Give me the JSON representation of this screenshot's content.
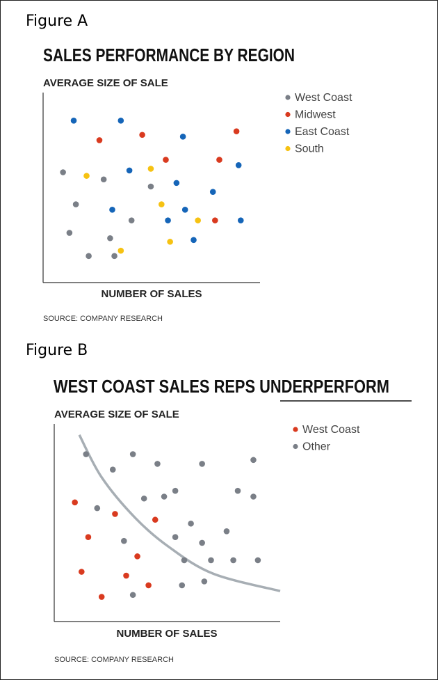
{
  "colors": {
    "West Coast": "#7a7f87",
    "Midwest": "#d93a1f",
    "East Coast": "#1565b8",
    "South": "#f6c212",
    "Other": "#7a7f87",
    "B West Coast": "#d93a1f",
    "curve": "#a7aeb4"
  },
  "chart_data": [
    {
      "figure_label": "Figure A",
      "type": "scatter",
      "title": "SALES PERFORMANCE BY REGION",
      "ylabel": "AVERAGE SIZE OF SALE",
      "xlabel": "NUMBER OF SALES",
      "source": "SOURCE: COMPANY RESEARCH",
      "legend_position": "top-right",
      "grid": false,
      "xlim": [
        0,
        100
      ],
      "ylim": [
        0,
        100
      ],
      "series": [
        {
          "name": "West Coast",
          "color": "#7a7f87",
          "points": [
            [
              8,
              58
            ],
            [
              14,
              40
            ],
            [
              11,
              24
            ],
            [
              27,
              54
            ],
            [
              30,
              21
            ],
            [
              40,
              31
            ],
            [
              32,
              11
            ],
            [
              20,
              11
            ],
            [
              49,
              50
            ]
          ]
        },
        {
          "name": "Midwest",
          "color": "#d93a1f",
          "points": [
            [
              25,
              76
            ],
            [
              45,
              79
            ],
            [
              56,
              65
            ],
            [
              89,
              81
            ],
            [
              81,
              65
            ],
            [
              79,
              31
            ]
          ]
        },
        {
          "name": "East Coast",
          "color": "#1565b8",
          "points": [
            [
              13,
              87
            ],
            [
              35,
              87
            ],
            [
              64,
              78
            ],
            [
              39,
              59
            ],
            [
              61,
              52
            ],
            [
              31,
              37
            ],
            [
              65,
              37
            ],
            [
              57,
              31
            ],
            [
              69,
              20
            ],
            [
              78,
              47
            ],
            [
              90,
              62
            ],
            [
              91,
              31
            ]
          ]
        },
        {
          "name": "South",
          "color": "#f6c212",
          "points": [
            [
              19,
              56
            ],
            [
              49,
              60
            ],
            [
              54,
              40
            ],
            [
              71,
              31
            ],
            [
              58,
              19
            ],
            [
              35,
              14
            ]
          ]
        }
      ]
    },
    {
      "figure_label": "Figure B",
      "type": "scatter",
      "title": "WEST COAST SALES REPS UNDERPERFORM",
      "ylabel": "AVERAGE SIZE OF SALE",
      "xlabel": "NUMBER OF SALES",
      "source": "SOURCE: COMPANY RESEARCH",
      "legend_position": "top-right",
      "grid": false,
      "xlim": [
        0,
        100
      ],
      "ylim": [
        0,
        100
      ],
      "series": [
        {
          "name": "West Coast",
          "color": "#d93a1f",
          "points": [
            [
              8,
              60
            ],
            [
              14,
              42
            ],
            [
              26,
              54
            ],
            [
              36,
              32
            ],
            [
              11,
              24
            ],
            [
              31,
              22
            ],
            [
              44,
              51
            ],
            [
              41,
              17
            ],
            [
              20,
              11
            ]
          ]
        },
        {
          "name": "Other",
          "color": "#7a7f87",
          "points": [
            [
              13,
              85
            ],
            [
              25,
              77
            ],
            [
              34,
              85
            ],
            [
              45,
              80
            ],
            [
              65,
              80
            ],
            [
              88,
              82
            ],
            [
              18,
              57
            ],
            [
              39,
              62
            ],
            [
              48,
              63
            ],
            [
              53,
              66
            ],
            [
              60,
              49
            ],
            [
              53,
              42
            ],
            [
              65,
              39
            ],
            [
              76,
              45
            ],
            [
              81,
              66
            ],
            [
              88,
              63
            ],
            [
              30,
              40
            ],
            [
              57,
              30
            ],
            [
              69,
              30
            ],
            [
              79,
              30
            ],
            [
              90,
              30
            ],
            [
              56,
              17
            ],
            [
              66,
              19
            ],
            [
              34,
              12
            ]
          ]
        }
      ],
      "curve": {
        "type": "hyperbola",
        "points": [
          [
            10,
            95
          ],
          [
            20,
            73
          ],
          [
            35,
            52
          ],
          [
            50,
            37
          ],
          [
            70,
            23
          ],
          [
            100,
            14
          ]
        ]
      }
    }
  ]
}
